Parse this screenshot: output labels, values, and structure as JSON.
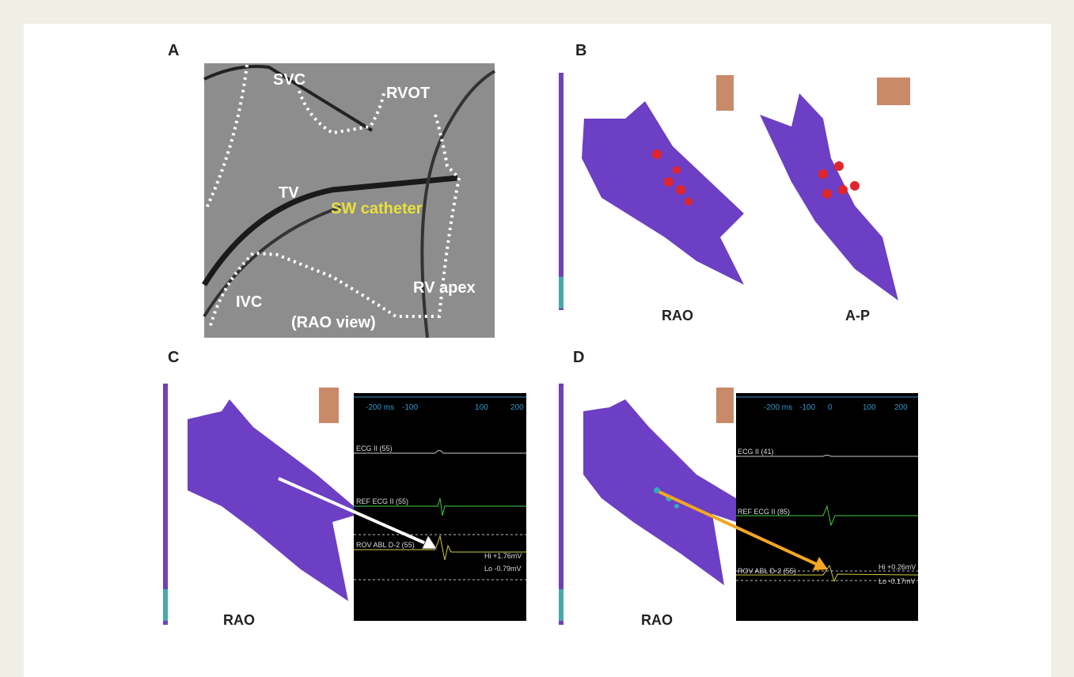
{
  "panels": [
    {
      "label": "A",
      "annotations": [
        "SVC",
        "RVOT",
        "TV",
        "SW catheter",
        "RV apex",
        "IVC",
        "(RAO view)"
      ]
    },
    {
      "label": "B",
      "views": [
        "RAO",
        "A-P"
      ]
    },
    {
      "label": "C",
      "view": "RAO",
      "ticks": [
        "-200 ms",
        "-100",
        "100",
        "200"
      ],
      "channels": [
        "ECG II (55)",
        "REF ECG II (55)",
        "ROV ABL D-2 (55)"
      ],
      "hi": "Hi +1.76mV",
      "lo": "Lo -0.79mV"
    },
    {
      "label": "D",
      "view": "RAO",
      "ticks": [
        "-200 ms",
        "-100",
        "0",
        "100",
        "200"
      ],
      "channels": [
        "ECG II (41)",
        "REF ECG II (85)",
        "ROV ABL D-2 (55)"
      ],
      "hi": "Hi +0.26mV",
      "lo": "Lo -0.17mV"
    }
  ]
}
